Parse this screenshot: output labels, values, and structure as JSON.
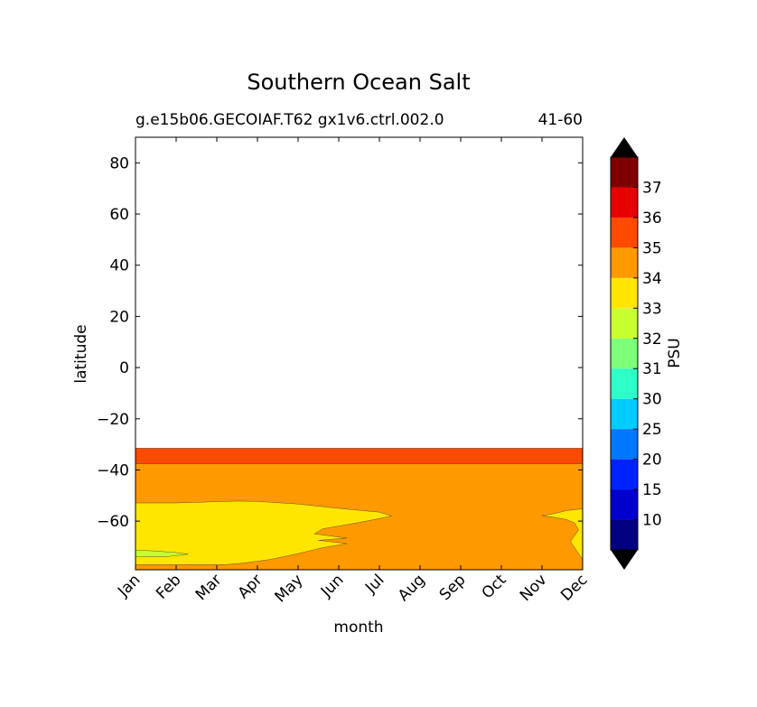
{
  "chart_data": {
    "type": "contour",
    "title": "Southern Ocean Salt",
    "subtitle_left": "g.e15b06.GECOIAF.T62 gx1v6.ctrl.002.0",
    "subtitle_right": "41-60",
    "xlabel": "month",
    "ylabel": "latitude",
    "x_categories": [
      "Jan",
      "Feb",
      "Mar",
      "Apr",
      "May",
      "Jun",
      "Jul",
      "Aug",
      "Sep",
      "Oct",
      "Nov",
      "Dec"
    ],
    "ylim": [
      -79,
      90
    ],
    "y_ticks": [
      -60,
      -40,
      -20,
      0,
      20,
      40,
      60,
      80
    ],
    "colorbar": {
      "label": "PSU",
      "levels": [
        "10",
        "15",
        "20",
        "25",
        "30",
        "31",
        "32",
        "33",
        "34",
        "35",
        "36",
        "37"
      ],
      "colors": [
        "#000080",
        "#0000cd",
        "#0022ff",
        "#0077ff",
        "#00ccff",
        "#2effc8",
        "#7dff7a",
        "#c8ff2e",
        "#ffe600",
        "#ff9900",
        "#ff4a00",
        "#e60000",
        "#7f0000"
      ],
      "extend_low_color": "#000000",
      "extend_high_color": "#000000"
    },
    "regions": [
      {
        "name": "34-35 band",
        "range": "34-35",
        "color": "#ff9900",
        "lat_top": -37.5
      },
      {
        "name": "35-36 band",
        "range": "35-36",
        "color": "#ff4a00",
        "lat_top": -31.5,
        "lat_bottom": -37.5
      },
      {
        "name": "33-34 region",
        "range": "33-34",
        "color": "#ffe600",
        "boundary": [
          [
            0,
            -52.9
          ],
          [
            1,
            -52.9
          ],
          [
            2,
            -52.4
          ],
          [
            2.5,
            -52.2
          ],
          [
            3,
            -52.3
          ],
          [
            4,
            -53.3
          ],
          [
            5,
            -55
          ],
          [
            6,
            -56.5
          ],
          [
            6.3,
            -58
          ],
          [
            5.9,
            -59.3
          ],
          [
            5.2,
            -61.4
          ],
          [
            4.6,
            -63
          ],
          [
            4.4,
            -65
          ],
          [
            5.2,
            -66.6
          ],
          [
            4.5,
            -67.5
          ],
          [
            5.2,
            -68.8
          ],
          [
            4.6,
            -70.4
          ],
          [
            4,
            -72.7
          ],
          [
            3.3,
            -75
          ],
          [
            2.6,
            -76.5
          ],
          [
            2.2,
            -77
          ],
          [
            0,
            -77
          ]
        ]
      },
      {
        "name": "33-34 region right",
        "range": "33-34",
        "color": "#ffe600",
        "boundary": [
          [
            11,
            -55.2
          ],
          [
            10.6,
            -55.9
          ],
          [
            10.3,
            -57.1
          ],
          [
            10,
            -57.8
          ],
          [
            10.3,
            -58.5
          ],
          [
            10.6,
            -59.4
          ],
          [
            10.8,
            -60.7
          ],
          [
            10.9,
            -63.4
          ],
          [
            10.7,
            -68
          ],
          [
            11,
            -75
          ],
          [
            11,
            -77
          ]
        ]
      },
      {
        "name": "32-33 patch",
        "range": "32-33",
        "color": "#c8ff2e",
        "boundary": [
          [
            0,
            -71.3
          ],
          [
            0.5,
            -71.7
          ],
          [
            1,
            -72.3
          ],
          [
            1.3,
            -72.9
          ],
          [
            0.8,
            -73.8
          ],
          [
            0,
            -74
          ]
        ]
      }
    ]
  }
}
